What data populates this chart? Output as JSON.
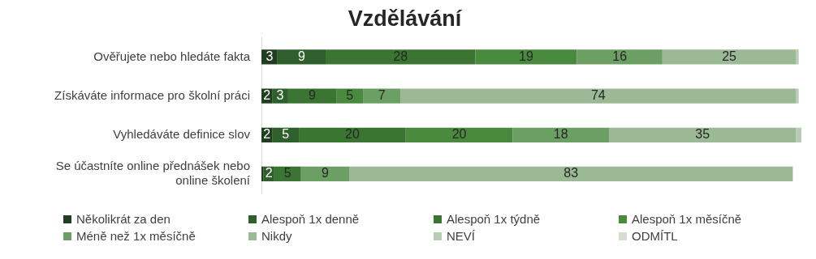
{
  "chart_data": {
    "type": "bar",
    "title": "Vzdělávání",
    "orientation": "horizontal",
    "stacked": true,
    "grid": false,
    "legend": "bottom",
    "categories": [
      "Ověřujete nebo hledáte fakta",
      "Získáváte informace pro školní práci",
      "Vyhledáváte definice slov",
      "Se účastníte online přednášek nebo online školení"
    ],
    "series": [
      {
        "name": "Několikrát za den",
        "color": "#203f20",
        "values": [
          3,
          2,
          2,
          0.4
        ],
        "value_labels": [
          "3",
          "2",
          "2",
          null
        ]
      },
      {
        "name": "Alespoň 1x denně",
        "color": "#2f5f2c",
        "values": [
          9,
          3,
          5,
          2
        ],
        "value_labels": [
          "9",
          "3",
          "5",
          "2"
        ]
      },
      {
        "name": "Alespoň 1x týdně",
        "color": "#3b7532",
        "values": [
          28,
          9,
          20,
          5
        ],
        "value_labels": [
          "28",
          "9",
          "20",
          "5"
        ]
      },
      {
        "name": "Alespoň 1x měsíčně",
        "color": "#4a8a3e",
        "values": [
          19,
          5,
          20,
          0
        ],
        "value_labels": [
          "19",
          "5",
          "20",
          null
        ]
      },
      {
        "name": "Méně než 1x měsíčně",
        "color": "#6c9f63",
        "values": [
          16,
          7,
          18,
          9
        ],
        "value_labels": [
          "16",
          "7",
          "18",
          "9"
        ]
      },
      {
        "name": "Nikdy",
        "color": "#9bb995",
        "values": [
          25,
          74,
          35,
          83
        ],
        "value_labels": [
          "25",
          "74",
          "35",
          "83"
        ]
      },
      {
        "name": "NEVÍ",
        "color": "#b8ccb3",
        "values": [
          0.5,
          0.5,
          1,
          0
        ],
        "value_labels": [
          null,
          null,
          null,
          null
        ]
      },
      {
        "name": "ODMÍTL",
        "color": "#d3ddd0",
        "values": [
          0,
          0,
          0,
          0
        ],
        "value_labels": [
          null,
          null,
          null,
          null
        ]
      }
    ]
  }
}
